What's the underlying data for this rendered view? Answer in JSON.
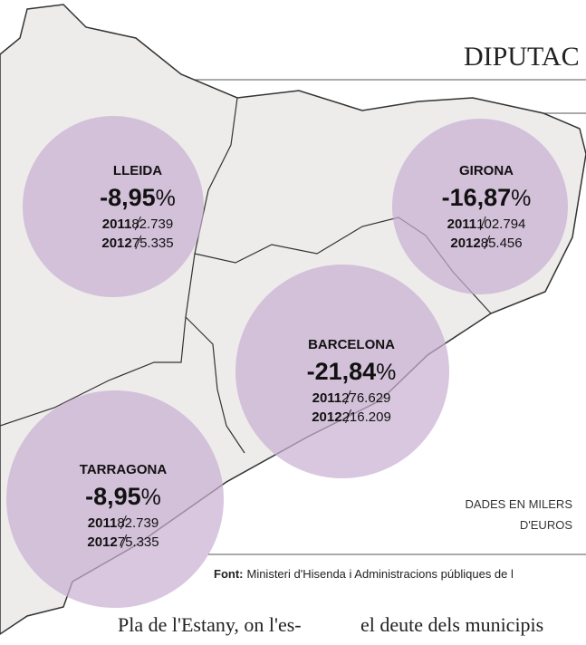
{
  "header": {
    "title": "DIPUTAC"
  },
  "regions": [
    {
      "name": "LLEIDA",
      "change": "-8,95",
      "unit": "%",
      "rows": [
        {
          "year": "2011",
          "value": "82.739"
        },
        {
          "year": "2012",
          "value": "75.335"
        }
      ]
    },
    {
      "name": "GIRONA",
      "change": "-16,87",
      "unit": "%",
      "rows": [
        {
          "year": "2011",
          "value": "102.794"
        },
        {
          "year": "2012",
          "value": "85.456"
        }
      ]
    },
    {
      "name": "BARCELONA",
      "change": "-21,84",
      "unit": "%",
      "rows": [
        {
          "year": "2011",
          "value": "276.629"
        },
        {
          "year": "2012",
          "value": "216.209"
        }
      ]
    },
    {
      "name": "TARRAGONA",
      "change": "-8,95",
      "unit": "%",
      "rows": [
        {
          "year": "2011",
          "value": "82.739"
        },
        {
          "year": "2012",
          "value": "75.335"
        }
      ]
    }
  ],
  "note": [
    "DADES EN MILERS",
    "D'EUROS"
  ],
  "source": {
    "label": "Font:",
    "text": "Ministeri d'Hisenda i Administracions públiques de l"
  },
  "body": [
    "Pla de l'Estany, on l'es-",
    "el deute dels municipis"
  ]
}
